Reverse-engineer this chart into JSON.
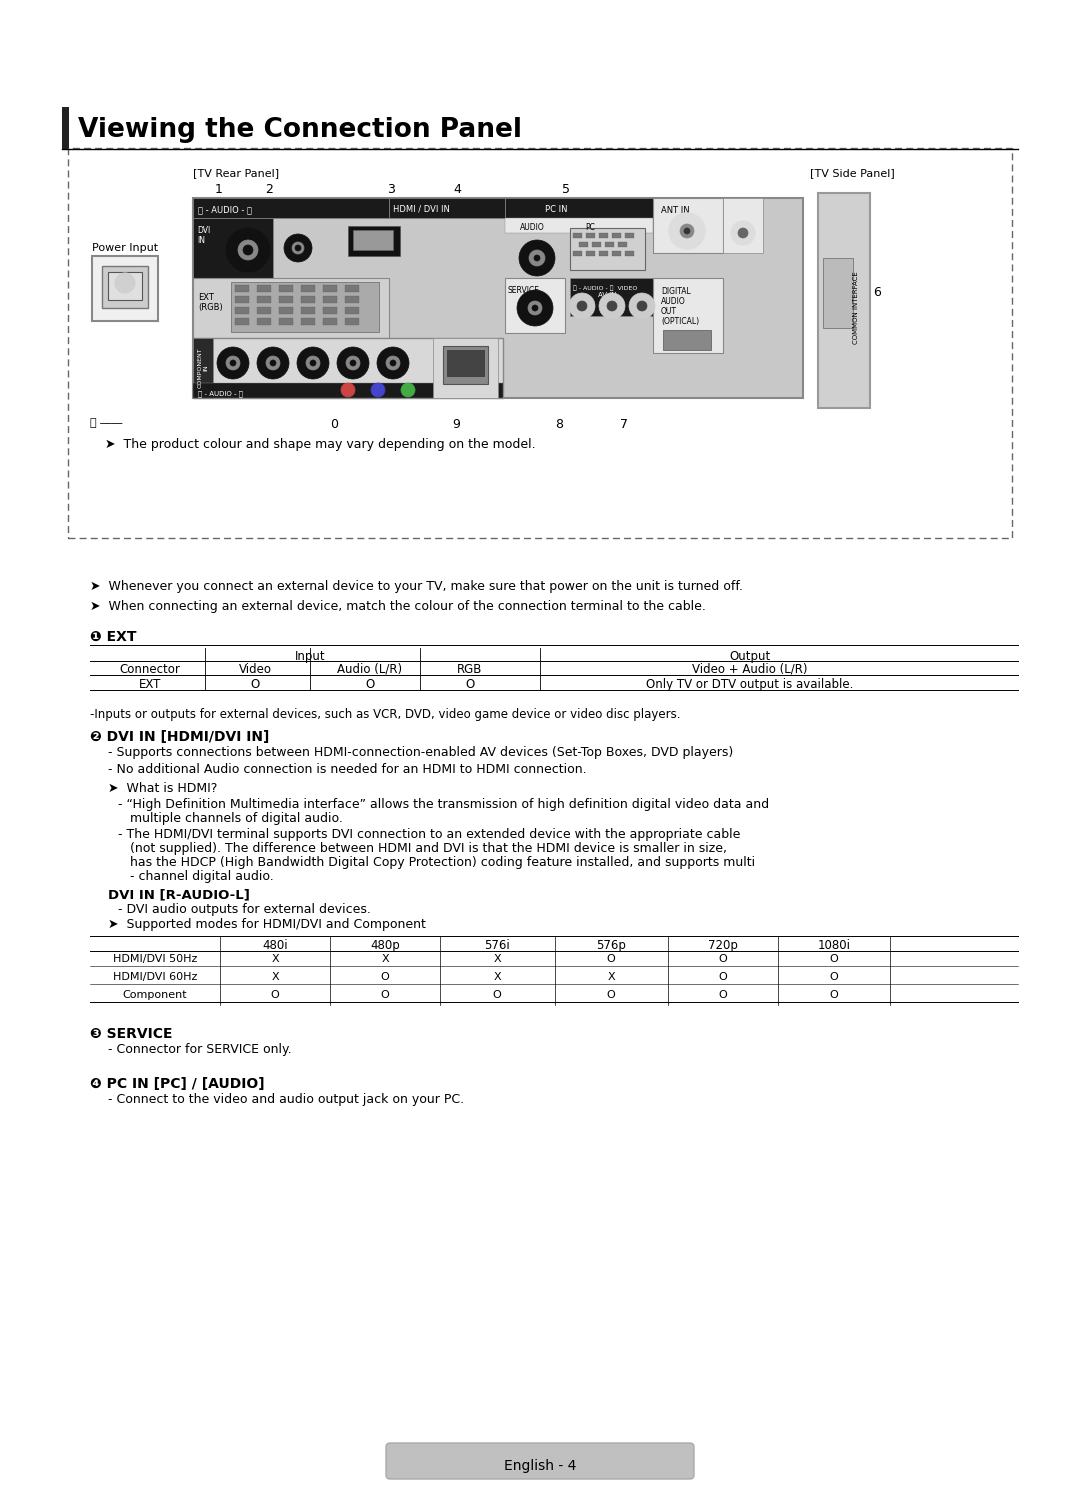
{
  "title": "Viewing the Connection Panel",
  "bg_color": "#ffffff",
  "text_color": "#000000",
  "page_label": "English - 4",
  "diagram_note": "The product colour and shape may vary depending on the model.",
  "notes": [
    "Whenever you connect an external device to your TV, make sure that power on the unit is turned off.",
    "When connecting an external device, match the colour of the connection terminal to the cable."
  ],
  "section1_title": "❶ EXT",
  "ext_note": "-Inputs or outputs for external devices, such as VCR, DVD, video game device or video disc players.",
  "section2_title": "❷ DVI IN [HDMI/DVI IN]",
  "dvi_bullets": [
    "- Supports connections between HDMI-connection-enabled AV devices (Set-Top Boxes, DVD players)",
    "- No additional Audio connection is needed for an HDMI to HDMI connection."
  ],
  "dvi_note_title": "➤  What is HDMI?",
  "dvi_note1_line1": "- “High Definition Multimedia interface” allows the transmission of high definition digital video data and",
  "dvi_note1_line2": "   multiple channels of digital audio.",
  "dvi_note2_line1": "- The HDMI/DVI terminal supports DVI connection to an extended device with the appropriate cable",
  "dvi_note2_line2": "   (not supplied). The difference between HDMI and DVI is that the HDMI device is smaller in size,",
  "dvi_note2_line3": "   has the HDCP (High Bandwidth Digital Copy Protection) coding feature installed, and supports multi",
  "dvi_note2_line4": "   - channel digital audio.",
  "dvi_audio_title": "DVI IN [R-AUDIO-L]",
  "dvi_audio_bullet": "- DVI audio outputs for external devices.",
  "supported_note": "➤  Supported modes for HDMI/DVI and Component",
  "modes_headers": [
    "",
    "480i",
    "480p",
    "576i",
    "576p",
    "720p",
    "1080i"
  ],
  "modes_rows": [
    [
      "HDMI/DVI 50Hz",
      "X",
      "X",
      "X",
      "O",
      "O",
      "O"
    ],
    [
      "HDMI/DVI 60Hz",
      "X",
      "O",
      "X",
      "X",
      "O",
      "O"
    ],
    [
      "Component",
      "O",
      "O",
      "O",
      "O",
      "O",
      "O"
    ]
  ],
  "section3_title": "❸ SERVICE",
  "service_bullet": "- Connector for SERVICE only.",
  "section4_title": "❹ PC IN [PC] / [AUDIO]",
  "pc_bullet": "- Connect to the video and audio output jack on your PC.",
  "arrow": "➤"
}
